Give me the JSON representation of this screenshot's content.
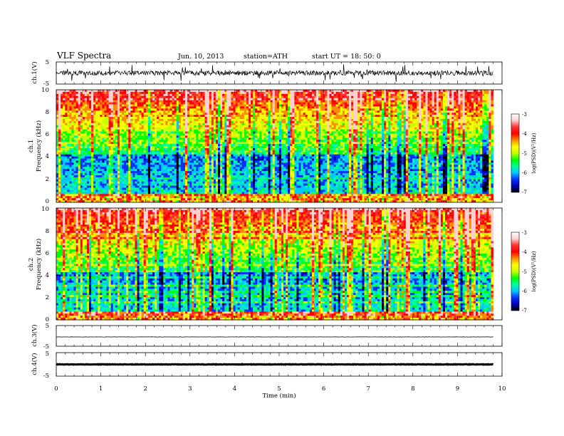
{
  "header": {
    "title": "VLF  Spectra",
    "date": "Jun. 10, 2013",
    "station": "station=ATH",
    "start": "start  UT  =   18: 50: 0"
  },
  "colormap": [
    "#000000",
    "#0000b4",
    "#0a32ff",
    "#00c8ff",
    "#00ff9a",
    "#00ff00",
    "#c8ff00",
    "#ffff00",
    "#ff8c00",
    "#ff0000",
    "#ff3030",
    "#ffd0d0",
    "#ffffff"
  ],
  "chart_data": [
    {
      "id": "ch1",
      "type": "line",
      "ylabel": "ch.1(V)",
      "ylim": [
        -5,
        5
      ],
      "yticks": [
        "5",
        "-5"
      ],
      "description": "waveform noise about 0 V with spikes"
    },
    {
      "id": "spec1",
      "type": "heatmap",
      "ylabel": "ch.1\nFrequency  (kHz)",
      "ylim": [
        0,
        10
      ],
      "yticks": [
        "0",
        "2",
        "4",
        "6",
        "8",
        "10"
      ],
      "colorbar": {
        "label": "log(PSD)(V²/Hz)",
        "range": [
          -7,
          -3
        ],
        "ticks": [
          "-3",
          "-4",
          "-5",
          "-6",
          "-7"
        ]
      }
    },
    {
      "id": "spec2",
      "type": "heatmap",
      "ylabel": "ch.2\nFrequency  (kHz)",
      "ylim": [
        0,
        10
      ],
      "yticks": [
        "0",
        "2",
        "4",
        "6",
        "8",
        "10"
      ],
      "colorbar": {
        "label": "log(PSD)(V²/Hz)",
        "range": [
          -7,
          -3
        ],
        "ticks": [
          "-3",
          "-4",
          "-5",
          "-6",
          "-7"
        ]
      }
    },
    {
      "id": "ch3",
      "type": "line",
      "ylabel": "ch.3(V)",
      "ylim": [
        -5,
        5
      ],
      "yticks": [
        "5",
        "-5"
      ],
      "description": "flat trace near -0.5 V"
    },
    {
      "id": "ch4",
      "type": "line",
      "ylabel": "ch.4(V)",
      "ylim": [
        -5,
        5
      ],
      "yticks": [
        "5",
        "-5"
      ],
      "description": "thick flat trace near 0 V"
    }
  ],
  "xaxis": {
    "label": "Time  (min)",
    "range": [
      0,
      10
    ],
    "data_end": 9.8,
    "ticks": [
      "0",
      "1",
      "2",
      "3",
      "4",
      "5",
      "6",
      "7",
      "8",
      "9",
      "10"
    ]
  }
}
